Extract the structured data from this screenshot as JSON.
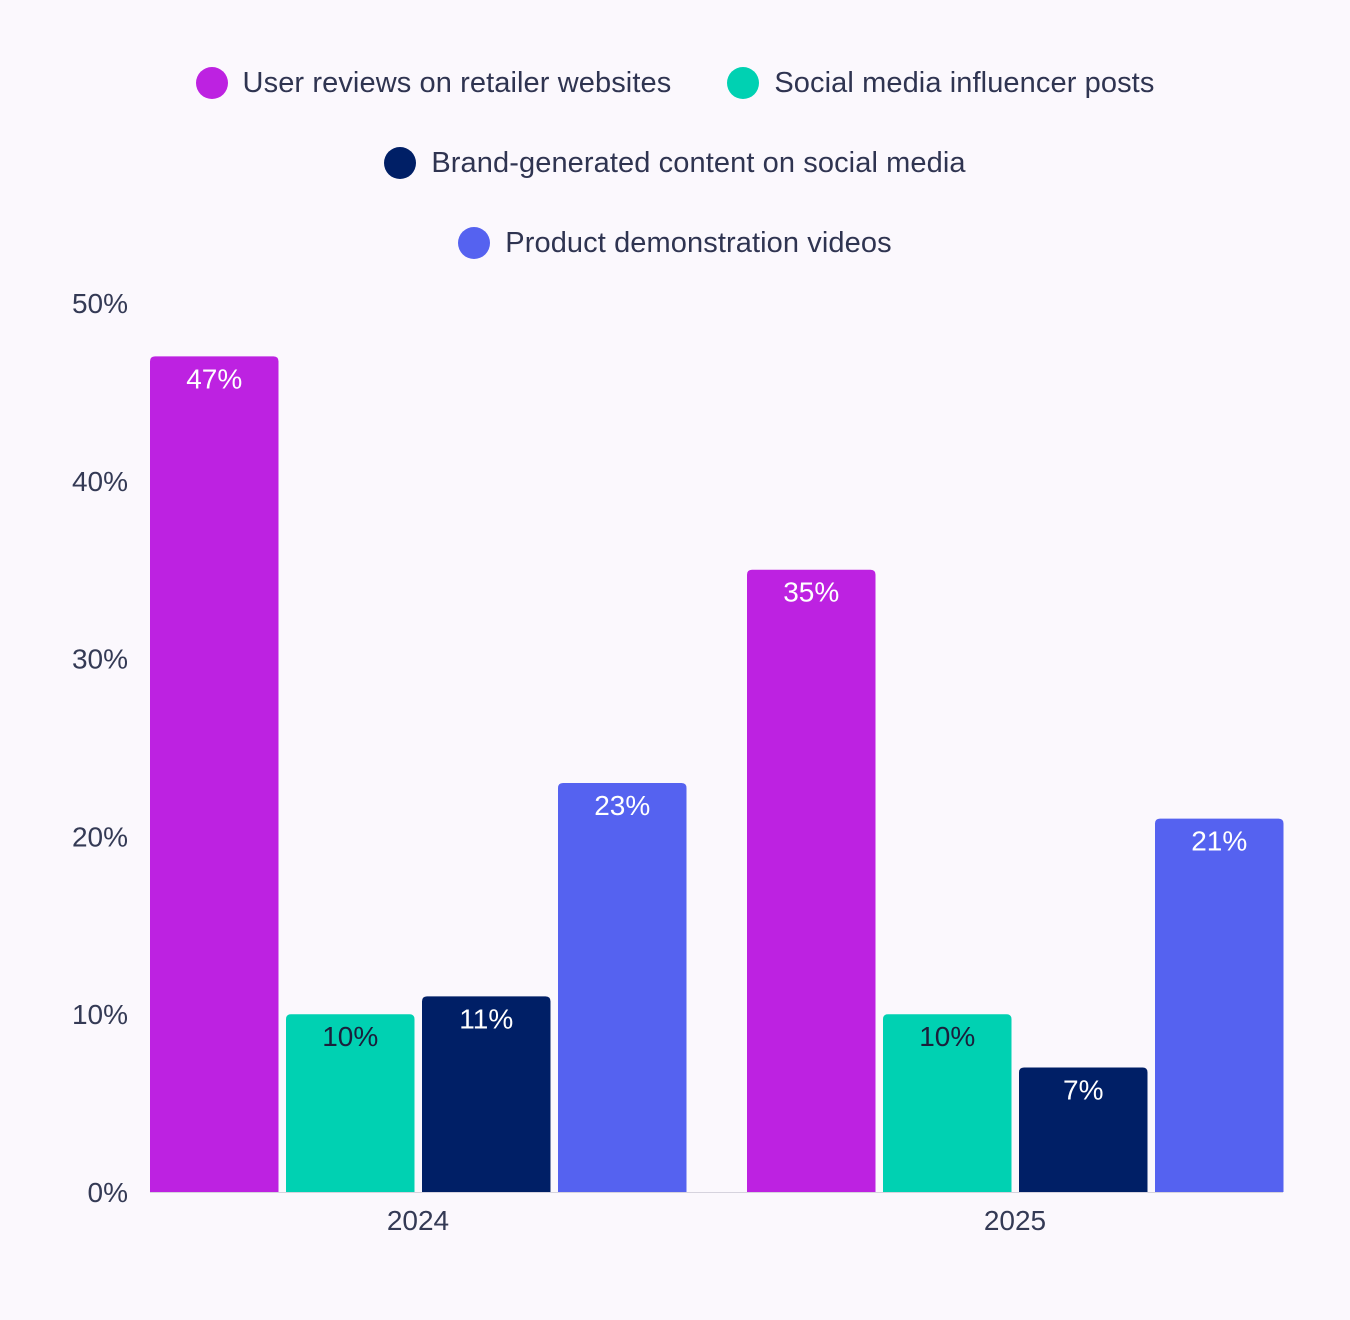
{
  "chart_data": {
    "type": "bar",
    "categories": [
      "2024",
      "2025"
    ],
    "series": [
      {
        "name": "User reviews on retailer websites",
        "values": [
          47,
          35
        ],
        "color": "#bd22e1",
        "label_color": "#ffffff"
      },
      {
        "name": "Social media influencer posts",
        "values": [
          10,
          10
        ],
        "color": "#00d1b2",
        "label_color": "#1b1f3b"
      },
      {
        "name": "Brand-generated content on social media",
        "values": [
          11,
          7
        ],
        "color": "#001f66",
        "label_color": "#ffffff"
      },
      {
        "name": "Product demonstration videos",
        "values": [
          23,
          21
        ],
        "color": "#5562f0",
        "label_color": "#ffffff"
      }
    ],
    "value_suffix": "%",
    "ylim": [
      0,
      50
    ],
    "yticks": [
      0,
      10,
      20,
      30,
      40,
      50
    ],
    "ytick_labels": [
      "0%",
      "10%",
      "20%",
      "30%",
      "40%",
      "50%"
    ],
    "title": "",
    "xlabel": "",
    "ylabel": "",
    "grid": false,
    "legend_position": "top"
  }
}
